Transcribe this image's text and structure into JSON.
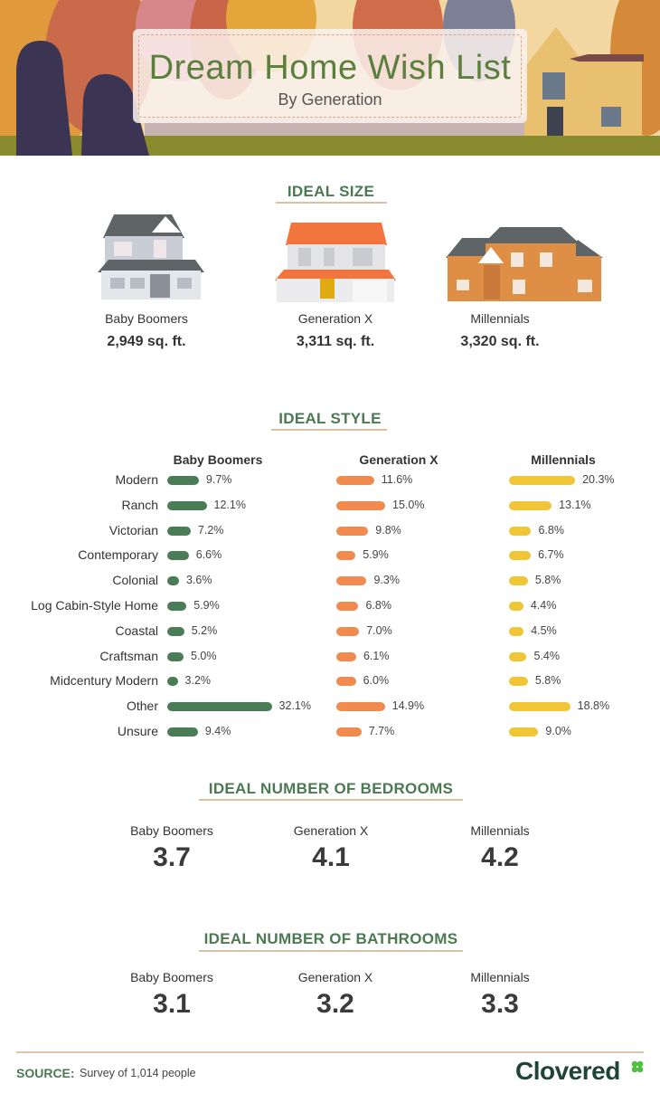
{
  "header": {
    "title": "Dream Home Wish List",
    "subtitle": "By Generation"
  },
  "generations": [
    "Baby Boomers",
    "Generation X",
    "Millennials"
  ],
  "ideal_size": {
    "heading": "IDEAL SIZE",
    "values": [
      "2,949 sq. ft.",
      "3,311 sq. ft.",
      "3,320 sq. ft."
    ]
  },
  "ideal_style": {
    "heading": "IDEAL STYLE"
  },
  "bedrooms": {
    "heading": "IDEAL NUMBER OF BEDROOMS",
    "values": [
      "3.7",
      "4.1",
      "4.2"
    ]
  },
  "bathrooms": {
    "heading": "IDEAL NUMBER OF BATHROOMS",
    "values": [
      "3.1",
      "3.2",
      "3.3"
    ]
  },
  "footer": {
    "source_label": "SOURCE:",
    "source_text": "Survey of 1,014 people",
    "brand": "Clovered"
  },
  "colors": {
    "boomers": "#4a7c56",
    "genx": "#f08a4e",
    "millennials": "#f0c636",
    "heading": "#4b7a52"
  },
  "chart_data": {
    "type": "bar",
    "orientation": "horizontal",
    "title": "IDEAL STYLE",
    "categories": [
      "Modern",
      "Ranch",
      "Victorian",
      "Contemporary",
      "Colonial",
      "Log Cabin-Style Home",
      "Coastal",
      "Craftsman",
      "Midcentury Modern",
      "Other",
      "Unsure"
    ],
    "series": [
      {
        "name": "Baby Boomers",
        "color": "#4a7c56",
        "values": [
          9.7,
          12.1,
          7.2,
          6.6,
          3.6,
          5.9,
          5.2,
          5.0,
          3.2,
          32.1,
          9.4
        ],
        "labels": [
          "9.7%",
          "12.1%",
          "7.2%",
          "6.6%",
          "3.6%",
          "5.9%",
          "5.2%",
          "5.0%",
          "3.2%",
          "32.1%",
          "9.4%"
        ]
      },
      {
        "name": "Generation X",
        "color": "#f08a4e",
        "values": [
          11.6,
          15.0,
          9.8,
          5.9,
          9.3,
          6.8,
          7.0,
          6.1,
          6.0,
          14.9,
          7.7
        ],
        "labels": [
          "11.6%",
          "15.0%",
          "9.8%",
          "5.9%",
          "9.3%",
          "6.8%",
          "7.0%",
          "6.1%",
          "6.0%",
          "14.9%",
          "7.7%"
        ]
      },
      {
        "name": "Millennials",
        "color": "#f0c636",
        "values": [
          20.3,
          13.1,
          6.8,
          6.7,
          5.8,
          4.4,
          4.5,
          5.4,
          5.8,
          18.8,
          9.0
        ],
        "labels": [
          "20.3%",
          "13.1%",
          "6.8%",
          "6.7%",
          "5.8%",
          "4.4%",
          "4.5%",
          "5.4%",
          "5.8%",
          "18.8%",
          "9.0%"
        ]
      }
    ],
    "unit": "%",
    "grid": false
  }
}
